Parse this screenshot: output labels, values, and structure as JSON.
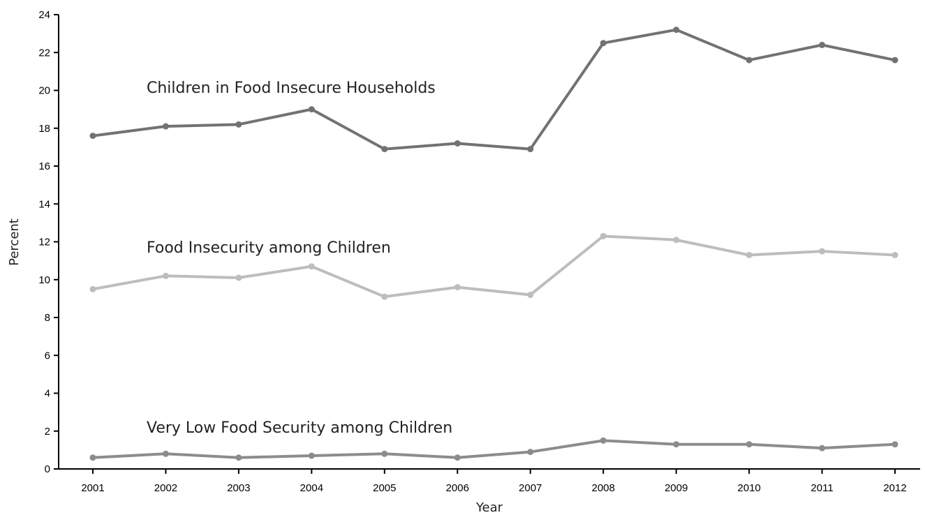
{
  "chart_data": {
    "type": "line",
    "title": "",
    "xlabel": "Year",
    "ylabel": "Percent",
    "ylim": [
      0,
      24
    ],
    "yticks": [
      "0",
      "2",
      "4",
      "6",
      "8",
      "10",
      "12",
      "14",
      "16",
      "18",
      "20",
      "22",
      "24"
    ],
    "categories": [
      "2001",
      "2002",
      "2003",
      "2004",
      "2005",
      "2006",
      "2007",
      "2008",
      "2009",
      "2010",
      "2011",
      "2012"
    ],
    "grid": false,
    "legend": "none (series labeled directly above lines)",
    "series": [
      {
        "name": "Children in Food Insecure Households",
        "color": "#727272",
        "values": [
          17.6,
          18.1,
          18.2,
          19.0,
          16.9,
          17.2,
          16.9,
          22.5,
          23.2,
          21.6,
          22.4,
          21.6
        ]
      },
      {
        "name": "Food Insecurity among Children",
        "color": "#bdbdbd",
        "values": [
          9.5,
          10.2,
          10.1,
          10.7,
          9.1,
          9.6,
          9.2,
          12.3,
          12.1,
          11.3,
          11.5,
          11.3
        ]
      },
      {
        "name": "Very Low Food Security among Children",
        "color": "#8c8c8c",
        "values": [
          0.6,
          0.8,
          0.6,
          0.7,
          0.8,
          0.6,
          0.9,
          1.5,
          1.3,
          1.3,
          1.1,
          1.3
        ]
      }
    ]
  }
}
